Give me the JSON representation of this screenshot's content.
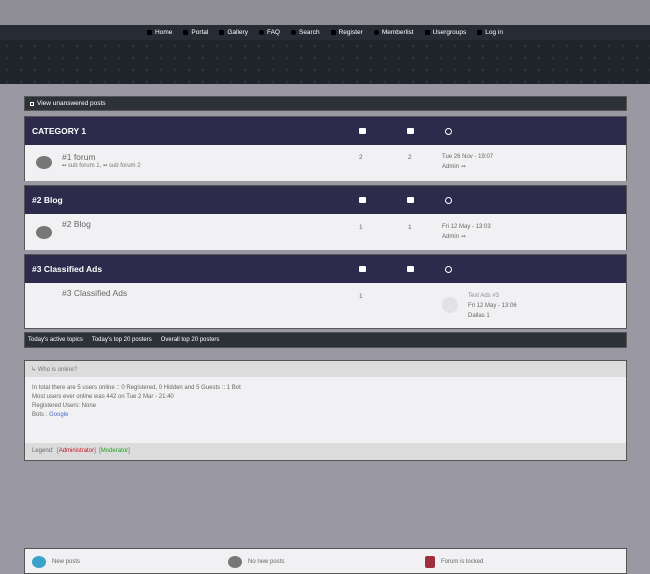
{
  "nav": [
    {
      "label": "Home",
      "icon": "home-icon"
    },
    {
      "label": "Portal",
      "icon": "portal-icon"
    },
    {
      "label": "Gallery",
      "icon": "gallery-icon"
    },
    {
      "label": "FAQ",
      "icon": "faq-icon"
    },
    {
      "label": "Search",
      "icon": "search-icon"
    },
    {
      "label": "Register",
      "icon": "register-icon"
    },
    {
      "label": "Memberlist",
      "icon": "memberlist-icon"
    },
    {
      "label": "Usergroups",
      "icon": "usergroups-icon"
    },
    {
      "label": "Log in",
      "icon": "login-icon"
    }
  ],
  "unanswered": "View unanswered posts",
  "categories": [
    {
      "title": "CATEGORY 1",
      "forum": "#1 forum",
      "topics": "2",
      "posts": "2",
      "last_date": "Tue 26 Nov - 19:07",
      "last_user": "Admin",
      "subforums": [
        "sub forum 1",
        "sub forum 2"
      ]
    },
    {
      "title": "#2 Blog",
      "forum": "#2 Blog",
      "topics": "1",
      "posts": "1",
      "last_date": "Fri 12 May - 13:03",
      "last_user": "Admin"
    },
    {
      "title": "#3 Classified Ads",
      "forum": "#3 Classified Ads",
      "topics": "1",
      "last_title": "Test Ads #3",
      "last_date": "Fri 12 May - 13:06",
      "last_user": "Dallas 1"
    }
  ],
  "stats_links": [
    "Today's active topics",
    "Today's top 20 posters",
    "Overall top 20 posters"
  ],
  "online": {
    "title": "Who is online?",
    "line1": "In total there are 5 users online :: 0 Registered, 0 Hidden and 5 Guests :: 1 Bot",
    "line2": "Most users ever online was 442 on Tue 2 Mar - 21:40",
    "line3": "Registered Users: None",
    "bots_label": "Bots : ",
    "bot": "Google",
    "legend_label": "Legend:",
    "admin": "Administrator",
    "moderator": "Moderator"
  },
  "key": {
    "new": "New posts",
    "none": "No new posts",
    "locked": "Forum is locked"
  },
  "colors": {
    "header": "#2c2b4b",
    "admin": "#c0141e",
    "moderator": "#1f9e1f",
    "new_posts": "#3aa3c9"
  }
}
